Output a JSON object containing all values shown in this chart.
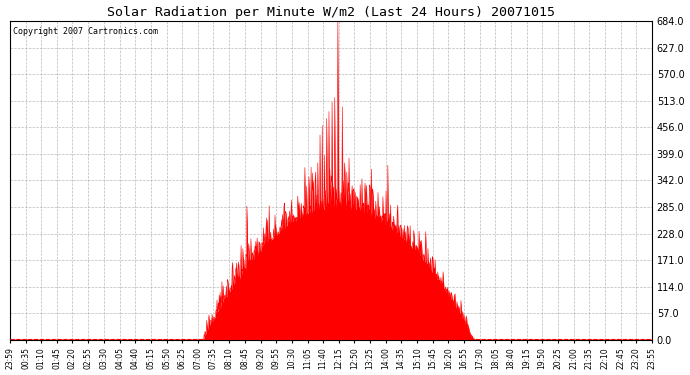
{
  "title": "Solar Radiation per Minute W/m2 (Last 24 Hours) 20071015",
  "copyright": "Copyright 2007 Cartronics.com",
  "bg_color": "#ffffff",
  "plot_bg_color": "#ffffff",
  "fill_color": "#ff0000",
  "line_color": "#ff0000",
  "grid_color": "#aaaaaa",
  "zero_line_color": "#ff0000",
  "ylim": [
    0,
    684
  ],
  "yticks": [
    0.0,
    57.0,
    114.0,
    171.0,
    228.0,
    285.0,
    342.0,
    399.0,
    456.0,
    513.0,
    570.0,
    627.0,
    684.0
  ],
  "xtick_labels": [
    "23:59",
    "00:35",
    "01:10",
    "01:45",
    "02:20",
    "02:55",
    "03:30",
    "04:05",
    "04:40",
    "05:15",
    "05:50",
    "06:25",
    "07:00",
    "07:35",
    "08:10",
    "08:45",
    "09:20",
    "09:55",
    "10:30",
    "11:05",
    "11:40",
    "12:15",
    "12:50",
    "13:25",
    "14:00",
    "14:35",
    "15:10",
    "15:45",
    "16:20",
    "16:55",
    "17:30",
    "18:05",
    "18:40",
    "19:15",
    "19:50",
    "20:25",
    "21:00",
    "21:35",
    "22:10",
    "22:45",
    "23:20",
    "23:55"
  ],
  "num_points": 1440,
  "sunrise_index": 435,
  "sunset_index": 1040,
  "solar_noon_index": 735
}
